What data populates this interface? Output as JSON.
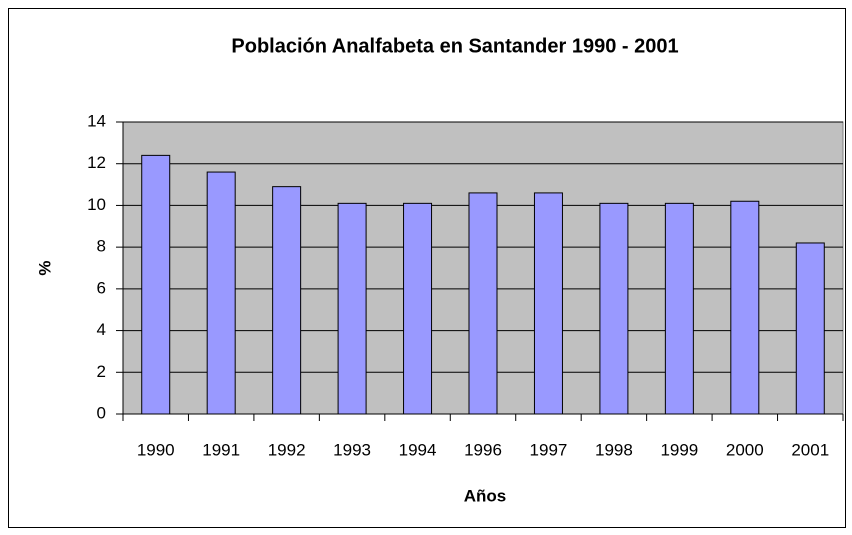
{
  "chart_data": {
    "type": "bar",
    "title": "Población Analfabeta en Santander 1990 - 2001",
    "x_label": "Años",
    "y_label": "%",
    "categories": [
      "1990",
      "1991",
      "1992",
      "1993",
      "1994",
      "1996",
      "1997",
      "1998",
      "1999",
      "2000",
      "2001"
    ],
    "values": [
      12.4,
      11.6,
      10.9,
      10.1,
      10.1,
      10.6,
      10.6,
      10.1,
      10.1,
      10.2,
      8.2
    ],
    "color": "#9999ff",
    "background": "#c0c0c0",
    "ylim": [
      0,
      14
    ],
    "yticks": [
      0,
      2,
      4,
      6,
      8,
      10,
      12,
      14
    ],
    "grid": true
  }
}
